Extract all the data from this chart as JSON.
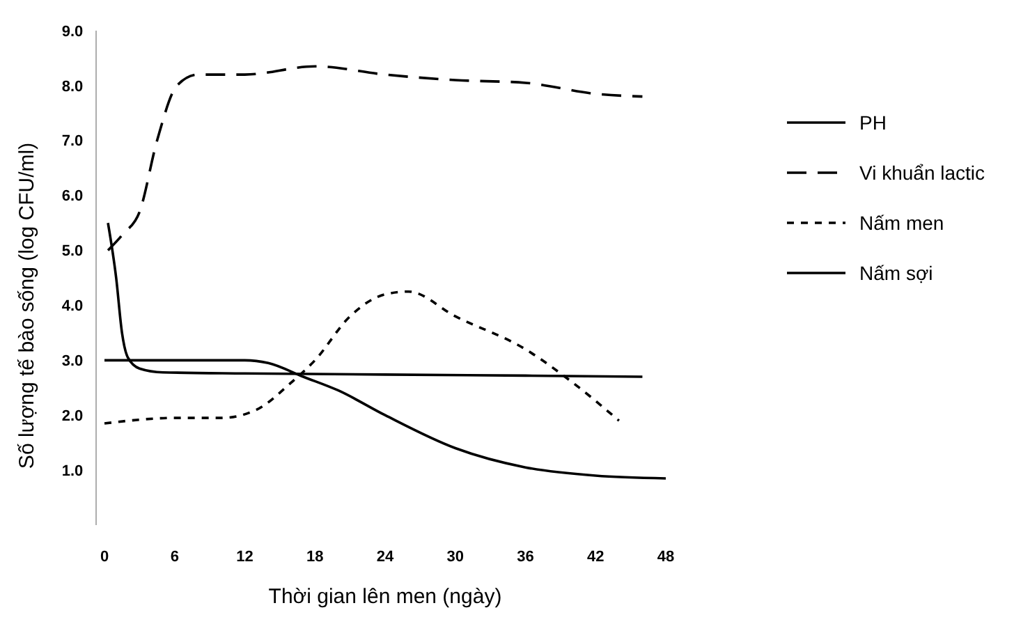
{
  "chart_data": {
    "type": "line",
    "xlabel": "Thời gian lên men (ngày)",
    "ylabel": "Số lượng tế bào sống (log CFU/ml)",
    "xlim": [
      0,
      48
    ],
    "xticks": [
      0,
      6,
      12,
      18,
      24,
      30,
      36,
      42,
      48
    ],
    "ylim": [
      0,
      9
    ],
    "yticks": [
      {
        "value": 1,
        "label": "1.0"
      },
      {
        "value": 2,
        "label": "2.0"
      },
      {
        "value": 3,
        "label": "3.0"
      },
      {
        "value": 4,
        "label": "4.0"
      },
      {
        "value": 5,
        "label": "5.0"
      },
      {
        "value": 6,
        "label": "6.0"
      },
      {
        "value": 7,
        "label": "7.0"
      },
      {
        "value": 8,
        "label": "8.0"
      },
      {
        "value": 9,
        "label": "9.0"
      }
    ],
    "grid": false,
    "legend": "right",
    "marker": "none",
    "series": [
      {
        "name": "PH",
        "color": "#000000",
        "line_style": "solid",
        "x": [
          0.3,
          1,
          1.5,
          2,
          3,
          5,
          12,
          24,
          36,
          46
        ],
        "values": [
          5.5,
          4.5,
          3.5,
          3.05,
          2.85,
          2.78,
          2.76,
          2.74,
          2.72,
          2.7
        ]
      },
      {
        "name": "Vi khuẩn lactic",
        "color": "#000000",
        "line_style": "dashed",
        "x": [
          0.3,
          1.6,
          3,
          4.5,
          6.2,
          8,
          12,
          18,
          24,
          30,
          36,
          42,
          46
        ],
        "values": [
          5.0,
          5.3,
          5.7,
          7.0,
          8.0,
          8.2,
          8.2,
          8.35,
          8.2,
          8.1,
          8.05,
          7.85,
          7.8
        ]
      },
      {
        "name": "Nấm men",
        "color": "#000000",
        "line_style": "dotted",
        "x": [
          0,
          6,
          10,
          13,
          16,
          18,
          21,
          24,
          26,
          30,
          36,
          40,
          44
        ],
        "values": [
          1.85,
          1.95,
          1.95,
          2.1,
          2.6,
          3.0,
          3.8,
          4.2,
          4.25,
          3.8,
          3.2,
          2.6,
          1.9
        ]
      },
      {
        "name": "Nấm sợi",
        "color": "#000000",
        "line_style": "solid",
        "x": [
          0,
          6,
          12,
          14,
          17,
          20,
          24,
          30,
          36,
          42,
          48
        ],
        "values": [
          3.0,
          3.0,
          3.0,
          2.95,
          2.7,
          2.45,
          2.0,
          1.4,
          1.05,
          0.9,
          0.85
        ]
      }
    ]
  }
}
